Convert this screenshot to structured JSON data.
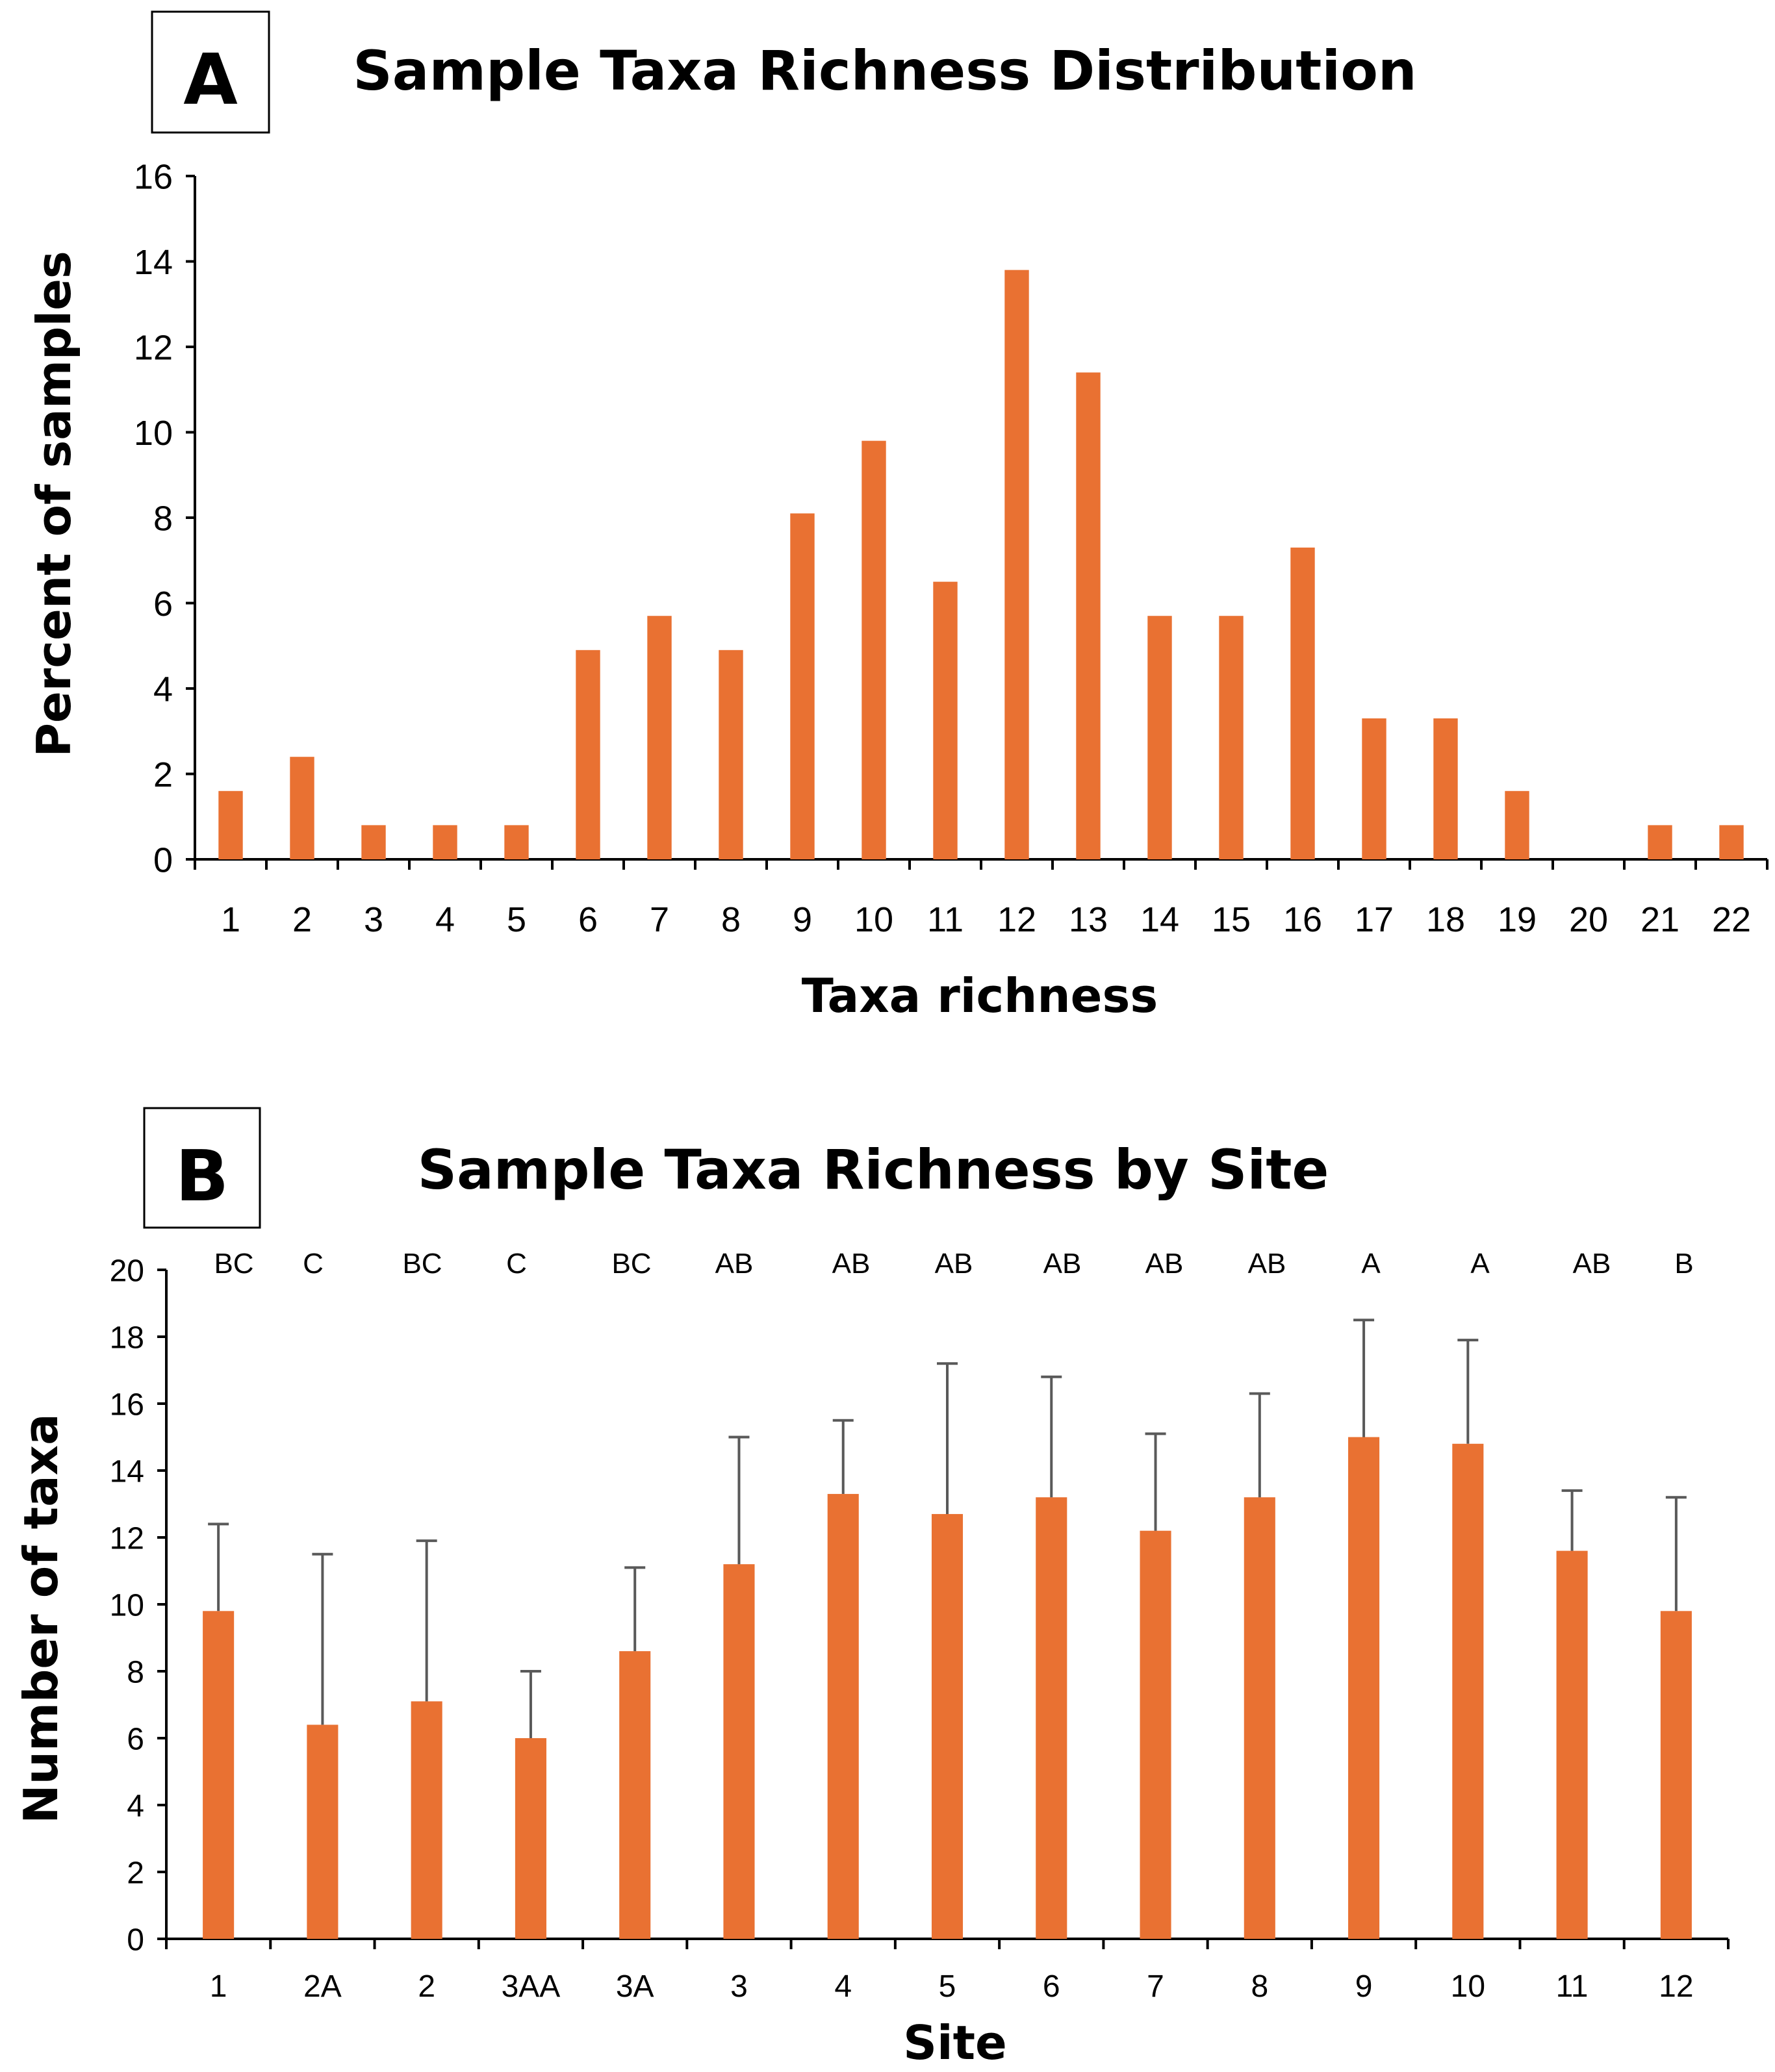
{
  "colors": {
    "bar": "#E97132",
    "error_bar": "#595959",
    "axis": "#000000"
  },
  "chart_data": [
    {
      "panel": "A",
      "type": "bar",
      "title": "Sample Taxa Richness Distribution",
      "xlabel": "Taxa richness",
      "ylabel": "Percent of samples",
      "ylim": [
        0,
        16
      ],
      "yticks": [
        0,
        2,
        4,
        6,
        8,
        10,
        12,
        14,
        16
      ],
      "categories": [
        "1",
        "2",
        "3",
        "4",
        "5",
        "6",
        "7",
        "8",
        "9",
        "10",
        "11",
        "12",
        "13",
        "14",
        "15",
        "16",
        "17",
        "18",
        "19",
        "20",
        "21",
        "22"
      ],
      "values": [
        1.6,
        2.4,
        0.8,
        0.8,
        0.8,
        4.9,
        5.7,
        4.9,
        8.1,
        9.8,
        6.5,
        13.8,
        11.4,
        5.7,
        5.7,
        7.3,
        3.3,
        3.3,
        1.6,
        0,
        0.8,
        0.8
      ],
      "grid": false
    },
    {
      "panel": "B",
      "type": "bar",
      "title": "Sample Taxa Richness by Site",
      "xlabel": "Site",
      "ylabel": "Number of taxa",
      "ylim": [
        0,
        20
      ],
      "yticks": [
        0,
        2,
        4,
        6,
        8,
        10,
        12,
        14,
        16,
        18,
        20
      ],
      "categories": [
        "1",
        "2A",
        "2",
        "3AA",
        "3A",
        "3",
        "4",
        "5",
        "6",
        "7",
        "8",
        "9",
        "10",
        "11",
        "12"
      ],
      "values": [
        9.8,
        6.4,
        7.1,
        6.0,
        8.6,
        11.2,
        13.3,
        12.7,
        13.2,
        12.2,
        13.2,
        15.0,
        14.8,
        11.6,
        9.8
      ],
      "error_upper": [
        12.4,
        11.5,
        11.9,
        8.0,
        11.1,
        15.0,
        15.5,
        17.2,
        16.8,
        15.1,
        16.3,
        18.5,
        17.9,
        13.4,
        13.2
      ],
      "significance": [
        "BC",
        "C",
        "BC",
        "C",
        "BC",
        "AB",
        "AB",
        "AB",
        "AB",
        "AB",
        "AB",
        "A",
        "A",
        "AB",
        "B"
      ],
      "grid": false
    }
  ]
}
